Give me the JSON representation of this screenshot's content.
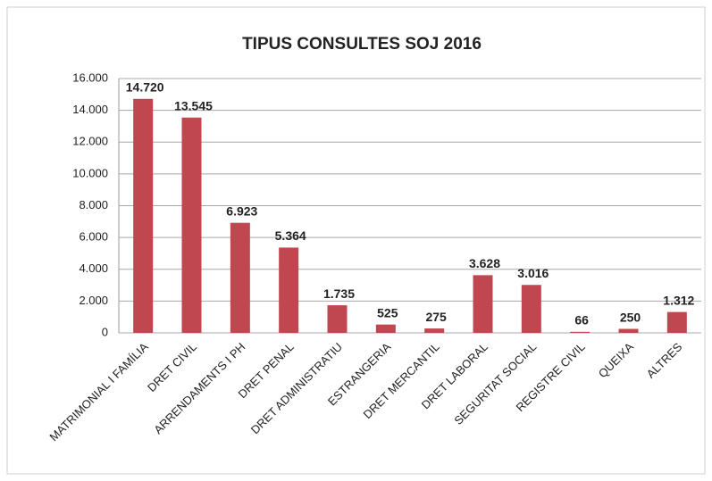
{
  "chart_data": {
    "type": "bar",
    "title": "TIPUS CONSULTES SOJ 2016",
    "categories": [
      "MATRIMONIAL I FAMÍLIA",
      "DRET CIVIL",
      "ARRENDAMENTS I PH",
      "DRET PENAL",
      "DRET ADMINISTRATIU",
      "ESTRANGERIA",
      "DRET MERCANTIL",
      "DRET LABORAL",
      "SEGURITAT SOCIAL",
      "REGISTRE CIVIL",
      "QUEIXA",
      "ALTRES"
    ],
    "values": [
      14720,
      13545,
      6923,
      5364,
      1735,
      525,
      275,
      3628,
      3016,
      66,
      250,
      1312
    ],
    "value_labels": [
      "14.720",
      "13.545",
      "6.923",
      "5.364",
      "1.735",
      "525",
      "275",
      "3.628",
      "3.016",
      "66",
      "250",
      "1.312"
    ],
    "color": "#c0474f",
    "ylim": [
      0,
      16000
    ],
    "yticks": [
      0,
      {
        "value": 2000,
        "label": "2.000"
      },
      {
        "value": 4000,
        "label": "4.000"
      },
      {
        "value": 6000,
        "label": "6.000"
      },
      {
        "value": 8000,
        "label": "8.000"
      },
      {
        "value": 10000,
        "label": "10.000"
      },
      {
        "value": 12000,
        "label": "12.000"
      },
      {
        "value": 14000,
        "label": "14.000"
      },
      {
        "value": 16000,
        "label": "16.000"
      }
    ],
    "grid": true
  }
}
